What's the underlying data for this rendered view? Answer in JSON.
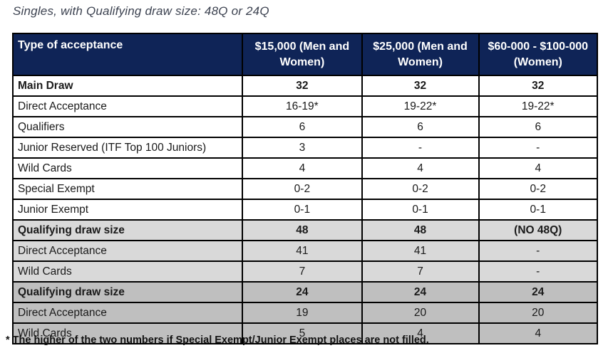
{
  "title": "Singles, with Qualifying draw size: 48Q or 24Q",
  "colors": {
    "header_bg": "#0f2457",
    "header_text": "#ffffff",
    "section_48_bg": "#d9d9d9",
    "section_24_bg": "#bfbfbf",
    "border": "#000000",
    "title_text": "#3c4250"
  },
  "table": {
    "headers": [
      "Type of acceptance",
      "$15,000 (Men and Women)",
      "$25,000 (Men and Women)",
      "$60-000 - $100-000 (Women)"
    ],
    "rows": [
      {
        "label": "Main Draw",
        "values": [
          "32",
          "32",
          "32"
        ],
        "bold": true,
        "section": "white"
      },
      {
        "label": "Direct Acceptance",
        "values": [
          "16-19*",
          "19-22*",
          "19-22*"
        ],
        "bold": false,
        "section": "white"
      },
      {
        "label": "Qualifiers",
        "values": [
          "6",
          "6",
          "6"
        ],
        "bold": false,
        "section": "white"
      },
      {
        "label": "Junior Reserved (ITF Top 100 Juniors)",
        "values": [
          "3",
          "-",
          "-"
        ],
        "bold": false,
        "section": "white"
      },
      {
        "label": "Wild Cards",
        "values": [
          "4",
          "4",
          "4"
        ],
        "bold": false,
        "section": "white"
      },
      {
        "label": "Special Exempt",
        "values": [
          "0-2",
          "0-2",
          "0-2"
        ],
        "bold": false,
        "section": "white"
      },
      {
        "label": "Junior Exempt",
        "values": [
          "0-1",
          "0-1",
          "0-1"
        ],
        "bold": false,
        "section": "white"
      },
      {
        "label": "Qualifying draw size",
        "values": [
          "48",
          "48",
          "(NO 48Q)"
        ],
        "bold": true,
        "section": "gray48"
      },
      {
        "label": "Direct Acceptance",
        "values": [
          "41",
          "41",
          "-"
        ],
        "bold": false,
        "section": "gray48"
      },
      {
        "label": "Wild Cards",
        "values": [
          "7",
          "7",
          "-"
        ],
        "bold": false,
        "section": "gray48"
      },
      {
        "label": "Qualifying draw size",
        "values": [
          "24",
          "24",
          "24"
        ],
        "bold": true,
        "section": "gray24"
      },
      {
        "label": "Direct Acceptance",
        "values": [
          "19",
          "20",
          "20"
        ],
        "bold": false,
        "section": "gray24"
      },
      {
        "label": "Wild Cards",
        "values": [
          "5",
          "4",
          "4"
        ],
        "bold": false,
        "section": "gray24"
      }
    ]
  },
  "footnote": "* The higher of the two numbers if Special Exempt/Junior Exempt places are not filled."
}
